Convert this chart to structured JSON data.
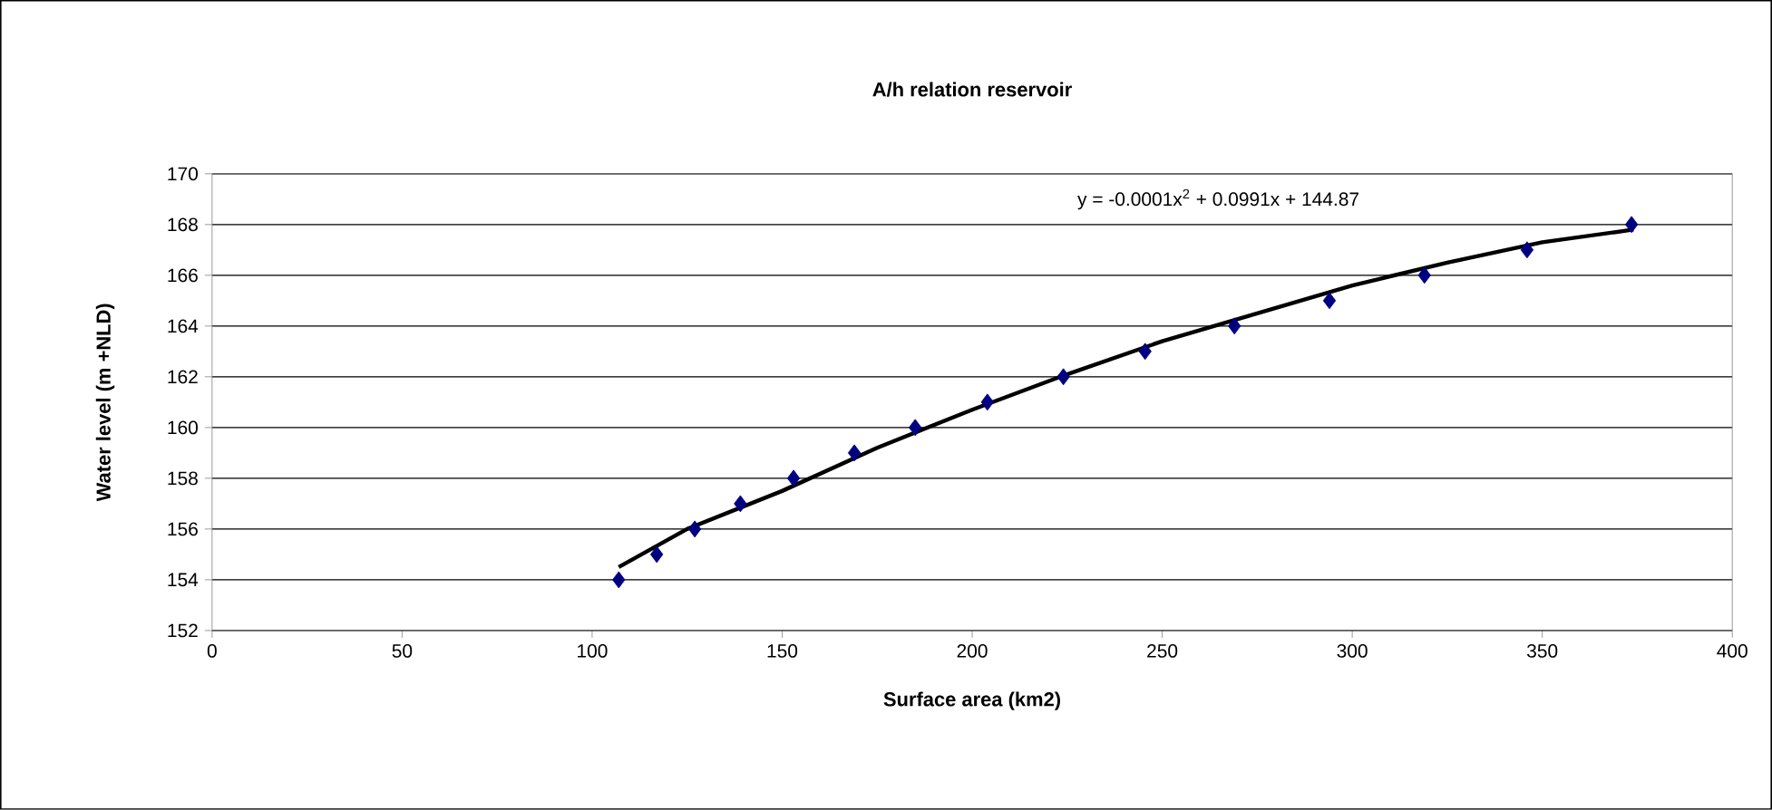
{
  "chart_data": {
    "type": "scatter",
    "title": "A/h relation reservoir",
    "xlabel": "Surface area (km2)",
    "ylabel": "Water level (m +NLD)",
    "series": [
      {
        "marker": "diamond",
        "color": "#000080",
        "x": [
          107,
          117,
          127,
          139,
          153,
          169,
          185,
          204,
          224,
          245.5,
          269,
          294,
          319,
          346,
          373.5
        ],
        "values": [
          154,
          155,
          156,
          157,
          158,
          159,
          160,
          161,
          162,
          163,
          164,
          165,
          166,
          167,
          168
        ]
      },
      {
        "type": "line",
        "marker": "none",
        "color": "#000000",
        "x": [
          107,
          125,
          150,
          175,
          200,
          225,
          250,
          275,
          300,
          325,
          350,
          374
        ],
        "values": [
          154.5,
          156.0,
          157.5,
          159.2,
          160.7,
          162.1,
          163.4,
          164.5,
          165.6,
          166.5,
          167.3,
          167.8
        ]
      }
    ],
    "annotations": [
      "y = -0.0001x$^{2}$ + 0.0991x + 144.87"
    ],
    "grid": "y",
    "xlim": [
      0,
      400
    ],
    "ylim": [
      152,
      170
    ],
    "xticks": [
      0,
      50,
      100,
      150,
      200,
      250,
      300,
      350,
      400
    ],
    "yticks": [
      152,
      154,
      156,
      158,
      160,
      162,
      164,
      166,
      168,
      170
    ]
  }
}
